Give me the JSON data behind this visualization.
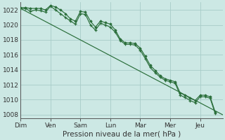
{
  "background_color": "#cce8e4",
  "grid_color": "#a8ccc8",
  "line_color": "#2a6e3a",
  "ylabel": "Pression niveau de la mer( hPa )",
  "ylim": [
    1007.5,
    1023.0
  ],
  "yticks": [
    1008,
    1010,
    1012,
    1014,
    1016,
    1018,
    1020,
    1022
  ],
  "day_labels": [
    "Dim",
    "Ven",
    "Sam",
    "Lun",
    "Mar",
    "Mer",
    "Jeu"
  ],
  "day_positions": [
    0,
    24,
    48,
    72,
    96,
    120,
    144
  ],
  "xlim": [
    0,
    162
  ],
  "line1_x": [
    0,
    4,
    8,
    12,
    16,
    20,
    24,
    28,
    32,
    36,
    40,
    44,
    48,
    52,
    56,
    60,
    64,
    68,
    72,
    76,
    80,
    84,
    88,
    92,
    96,
    100,
    104,
    108,
    112,
    116,
    120,
    124,
    128,
    132,
    136,
    140,
    144,
    148,
    152,
    156
  ],
  "line1_y": [
    1022.2,
    1022.2,
    1021.8,
    1022.0,
    1021.9,
    1021.7,
    1022.5,
    1022.0,
    1021.5,
    1021.0,
    1020.5,
    1020.1,
    1021.5,
    1021.4,
    1020.0,
    1019.3,
    1020.2,
    1020.0,
    1019.7,
    1019.0,
    1017.9,
    1017.4,
    1017.4,
    1017.3,
    1016.6,
    1015.5,
    1014.3,
    1013.6,
    1013.0,
    1012.6,
    1012.4,
    1012.2,
    1010.6,
    1010.3,
    1009.9,
    1009.6,
    1010.4,
    1010.4,
    1010.2,
    1008.2
  ],
  "line2_x": [
    0,
    162
  ],
  "line2_y": [
    1022.2,
    1008.0
  ],
  "line3_x": [
    0,
    4,
    8,
    12,
    16,
    20,
    24,
    28,
    32,
    36,
    40,
    44,
    48,
    52,
    56,
    60,
    64,
    68,
    72,
    76,
    80,
    84,
    88,
    92,
    96,
    100,
    104,
    108,
    112,
    116,
    120,
    124,
    128,
    132,
    136,
    140,
    144,
    148,
    152,
    156
  ],
  "line3_y": [
    1022.3,
    1022.3,
    1022.2,
    1022.2,
    1022.2,
    1022.0,
    1022.6,
    1022.4,
    1022.0,
    1021.5,
    1020.8,
    1020.5,
    1021.8,
    1021.7,
    1020.5,
    1019.7,
    1020.5,
    1020.3,
    1020.1,
    1019.3,
    1018.1,
    1017.6,
    1017.6,
    1017.5,
    1016.9,
    1015.8,
    1014.6,
    1013.9,
    1013.2,
    1012.8,
    1012.6,
    1012.4,
    1010.9,
    1010.6,
    1010.2,
    1009.9,
    1010.6,
    1010.6,
    1010.4,
    1008.4
  ]
}
